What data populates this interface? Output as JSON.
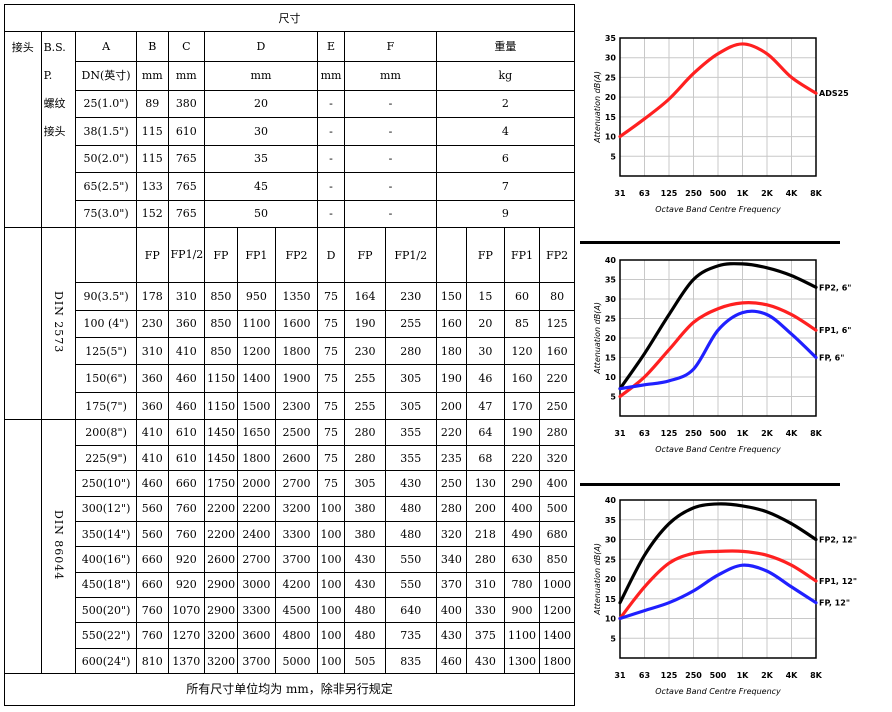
{
  "table": {
    "title": "尺寸",
    "h_connector": "接头",
    "h_bsp_lines": [
      "B.S.",
      "P.",
      "螺纹",
      "接头"
    ],
    "h_A": "A",
    "h_B": "B",
    "h_C": "C",
    "h_D": "D",
    "h_E": "E",
    "h_F": "F",
    "h_weight": "重量",
    "u_A": "DN(英寸)",
    "u_B": "mm",
    "u_C": "mm",
    "u_D": "mm",
    "u_E": "mm",
    "u_F": "mm",
    "u_weight": "kg",
    "bsp_rows": [
      {
        "a": "25(1.0\")",
        "b": "89",
        "c": "380",
        "d": "20",
        "e": "-",
        "f": "-",
        "w": "2"
      },
      {
        "a": "38(1.5\")",
        "b": "115",
        "c": "610",
        "d": "30",
        "e": "-",
        "f": "-",
        "w": "4"
      },
      {
        "a": "50(2.0\")",
        "b": "115",
        "c": "765",
        "d": "35",
        "e": "-",
        "f": "-",
        "w": "6"
      },
      {
        "a": "65(2.5\")",
        "b": "133",
        "c": "765",
        "d": "45",
        "e": "-",
        "f": "-",
        "w": "7"
      },
      {
        "a": "75(3.0\")",
        "b": "152",
        "c": "765",
        "d": "50",
        "e": "-",
        "f": "-",
        "w": "9"
      }
    ],
    "din2573_label": "DIN 2573",
    "din86044_label": "DIN 86044",
    "sub_headers": {
      "b": "FP",
      "c": "FP1/2",
      "d1": "FP",
      "d2": "FP1",
      "d3": "FP2",
      "d4": "D",
      "e": "FP",
      "f": "FP1/2",
      "w1": "",
      "w2": "FP",
      "w3": "FP1",
      "w4": "FP2"
    },
    "din2573_rows": [
      [
        "90(3.5\")",
        "178",
        "310",
        "850",
        "950",
        "1350",
        "75",
        "164",
        "230",
        "150",
        "15",
        "60",
        "80"
      ],
      [
        "100 (4\")",
        "230",
        "360",
        "850",
        "1100",
        "1600",
        "75",
        "190",
        "255",
        "160",
        "20",
        "85",
        "125"
      ],
      [
        "125(5\")",
        "310",
        "410",
        "850",
        "1200",
        "1800",
        "75",
        "230",
        "280",
        "180",
        "30",
        "120",
        "160"
      ],
      [
        "150(6\")",
        "360",
        "460",
        "1150",
        "1400",
        "1900",
        "75",
        "255",
        "305",
        "190",
        "46",
        "160",
        "220"
      ],
      [
        "175(7\")",
        "360",
        "460",
        "1150",
        "1500",
        "2300",
        "75",
        "255",
        "305",
        "200",
        "47",
        "170",
        "250"
      ]
    ],
    "din86044_rows": [
      [
        "200(8\")",
        "410",
        "610",
        "1450",
        "1650",
        "2500",
        "75",
        "280",
        "355",
        "220",
        "64",
        "190",
        "280"
      ],
      [
        "225(9\")",
        "410",
        "610",
        "1450",
        "1800",
        "2600",
        "75",
        "280",
        "355",
        "235",
        "68",
        "220",
        "320"
      ],
      [
        "250(10\")",
        "460",
        "660",
        "1750",
        "2000",
        "2700",
        "75",
        "305",
        "430",
        "250",
        "130",
        "290",
        "400"
      ],
      [
        "300(12\")",
        "560",
        "760",
        "2200",
        "2200",
        "3200",
        "100",
        "380",
        "480",
        "280",
        "200",
        "400",
        "500"
      ],
      [
        "350(14\")",
        "560",
        "760",
        "2200",
        "2400",
        "3300",
        "100",
        "380",
        "480",
        "320",
        "218",
        "490",
        "680"
      ],
      [
        "400(16\")",
        "660",
        "920",
        "2600",
        "2700",
        "3700",
        "100",
        "430",
        "550",
        "340",
        "280",
        "630",
        "850"
      ],
      [
        "450(18\")",
        "660",
        "920",
        "2900",
        "3000",
        "4200",
        "100",
        "430",
        "550",
        "370",
        "310",
        "780",
        "1000"
      ],
      [
        "500(20\")",
        "760",
        "1070",
        "2900",
        "3300",
        "4500",
        "100",
        "480",
        "640",
        "400",
        "330",
        "900",
        "1200"
      ],
      [
        "550(22\")",
        "760",
        "1270",
        "3200",
        "3600",
        "4800",
        "100",
        "480",
        "735",
        "430",
        "375",
        "1100",
        "1400"
      ],
      [
        "600(24\")",
        "810",
        "1370",
        "3200",
        "3700",
        "5000",
        "100",
        "505",
        "835",
        "460",
        "430",
        "1300",
        "1800"
      ]
    ],
    "footer": "所有尺寸单位均为 mm，除非另行规定"
  },
  "chart_data": [
    {
      "type": "line",
      "categories": [
        "31",
        "63",
        "125",
        "250",
        "500",
        "1K",
        "2K",
        "4K",
        "8K"
      ],
      "xlabel": "Octave Band Centre Frequency",
      "ylabel": "Attenuation dB(A)",
      "ylim": [
        0,
        35
      ],
      "yticks": [
        5,
        10,
        15,
        20,
        25,
        30,
        35
      ],
      "grid": true,
      "series": [
        {
          "name": "ADS25",
          "color": "#ff2020",
          "values": [
            10,
            14.5,
            19.5,
            26,
            31,
            33.5,
            31,
            25,
            21
          ]
        }
      ]
    },
    {
      "type": "line",
      "categories": [
        "31",
        "63",
        "125",
        "250",
        "500",
        "1K",
        "2K",
        "4K",
        "8K"
      ],
      "xlabel": "Octave Band Centre Frequency",
      "ylabel": "Attenuation dB(A)",
      "ylim": [
        0,
        40
      ],
      "yticks": [
        5,
        10,
        15,
        20,
        25,
        30,
        35,
        40
      ],
      "grid": true,
      "series": [
        {
          "name": "FP2, 6\"",
          "color": "#000000",
          "values": [
            7,
            16,
            26,
            35,
            38.5,
            39,
            38,
            36,
            33
          ]
        },
        {
          "name": "FP1, 6\"",
          "color": "#ff2020",
          "values": [
            5,
            10,
            17,
            24,
            27.5,
            29,
            28.5,
            26,
            22
          ]
        },
        {
          "name": "FP, 6\"",
          "color": "#2020ff",
          "values": [
            7,
            8,
            9,
            12,
            22,
            26.5,
            26,
            21,
            15
          ]
        }
      ]
    },
    {
      "type": "line",
      "categories": [
        "31",
        "63",
        "125",
        "250",
        "500",
        "1K",
        "2K",
        "4K",
        "8K"
      ],
      "xlabel": "Octave Band Centre Frequency",
      "ylabel": "Attenuation dB(A)",
      "ylim": [
        0,
        40
      ],
      "yticks": [
        5,
        10,
        15,
        20,
        25,
        30,
        35,
        40
      ],
      "grid": true,
      "series": [
        {
          "name": "FP2, 12\"",
          "color": "#000000",
          "values": [
            14,
            26,
            34,
            38,
            39,
            38.5,
            37,
            34,
            30
          ]
        },
        {
          "name": "FP1, 12\"",
          "color": "#ff2020",
          "values": [
            10,
            18,
            24,
            26.5,
            27,
            27,
            26,
            23.5,
            19.5
          ]
        },
        {
          "name": "FP, 12\"",
          "color": "#2020ff",
          "values": [
            10,
            12,
            14,
            17,
            21,
            23.5,
            22,
            18,
            14
          ]
        }
      ]
    }
  ]
}
